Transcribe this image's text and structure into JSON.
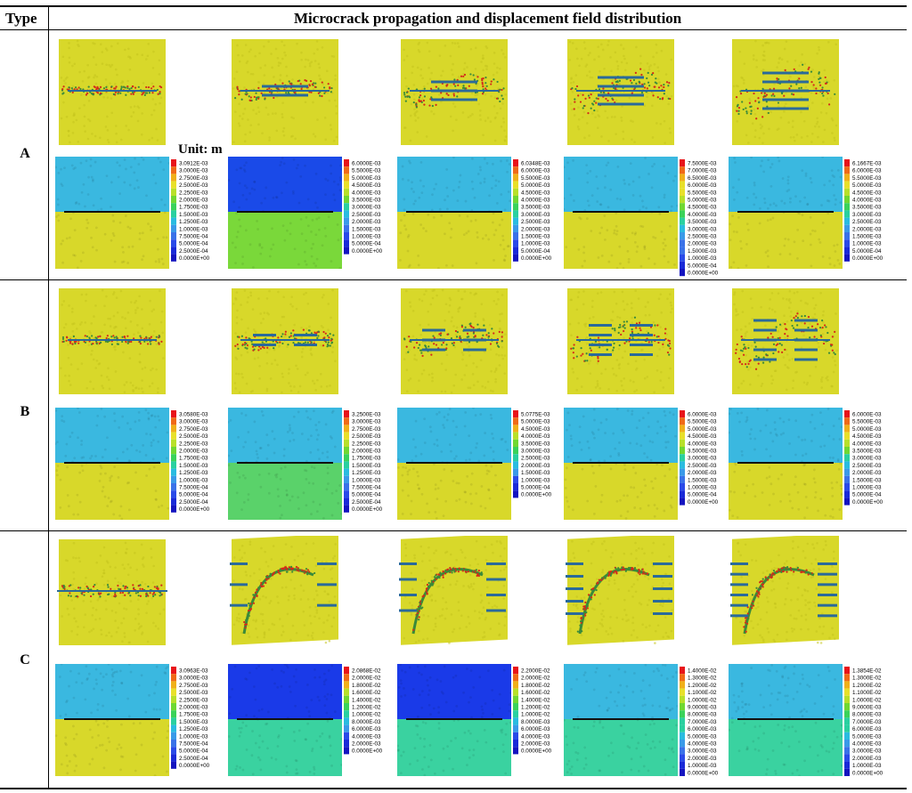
{
  "table": {
    "col_type": "Type",
    "col_main": "Microcrack propagation and displacement field distribution",
    "unit_label": "Unit: m"
  },
  "rows": [
    {
      "label": "A",
      "columns": [
        {
          "legend": [
            "3.0912E-03",
            "3.0000E-03",
            "2.7500E-03",
            "2.5000E-03",
            "2.2500E-03",
            "2.0000E-03",
            "1.7500E-03",
            "1.5000E-03",
            "1.2500E-03",
            "1.0000E-03",
            "7.5000E-04",
            "5.0000E-04",
            "2.5000E-04",
            "0.0000E+00"
          ]
        },
        {
          "legend": [
            "6.0000E-03",
            "5.5000E-03",
            "5.0000E-03",
            "4.5000E-03",
            "4.0000E-03",
            "3.5000E-03",
            "3.0000E-03",
            "2.5000E-03",
            "2.0000E-03",
            "1.5000E-03",
            "1.0000E-03",
            "5.0000E-04",
            "0.0000E+00"
          ]
        },
        {
          "legend": [
            "6.0348E-03",
            "6.0000E-03",
            "5.5000E-03",
            "5.0000E-03",
            "4.5000E-03",
            "4.0000E-03",
            "3.5000E-03",
            "3.0000E-03",
            "2.5000E-03",
            "2.0000E-03",
            "1.5000E-03",
            "1.0000E-03",
            "5.0000E-04",
            "0.0000E+00"
          ]
        },
        {
          "legend": [
            "7.5000E-03",
            "7.0000E-03",
            "6.5000E-03",
            "6.0000E-03",
            "5.5000E-03",
            "5.0000E-03",
            "4.5000E-03",
            "4.0000E-03",
            "3.5000E-03",
            "3.0000E-03",
            "2.5000E-03",
            "2.0000E-03",
            "1.5000E-03",
            "1.0000E-03",
            "5.0000E-04",
            "0.0000E+00"
          ]
        },
        {
          "legend": [
            "6.1667E-03",
            "6.0000E-03",
            "5.5000E-03",
            "5.0000E-03",
            "4.5000E-03",
            "4.0000E-03",
            "3.5000E-03",
            "3.0000E-03",
            "2.5000E-03",
            "2.0000E-03",
            "1.5000E-03",
            "1.0000E-03",
            "5.0000E-04",
            "0.0000E+00"
          ]
        }
      ]
    },
    {
      "label": "B",
      "columns": [
        {
          "legend": [
            "3.0580E-03",
            "3.0000E-03",
            "2.7500E-03",
            "2.5000E-03",
            "2.2500E-03",
            "2.0000E-03",
            "1.7500E-03",
            "1.5000E-03",
            "1.2500E-03",
            "1.0000E-03",
            "7.5000E-04",
            "5.0000E-04",
            "2.5000E-04",
            "0.0000E+00"
          ]
        },
        {
          "legend": [
            "3.2500E-03",
            "3.0000E-03",
            "2.7500E-03",
            "2.5000E-03",
            "2.2500E-03",
            "2.0000E-03",
            "1.7500E-03",
            "1.5000E-03",
            "1.2500E-03",
            "1.0000E-03",
            "7.5000E-04",
            "5.0000E-04",
            "2.5000E-04",
            "0.0000E+00"
          ]
        },
        {
          "legend": [
            "5.0775E-03",
            "5.0000E-03",
            "4.5000E-03",
            "4.0000E-03",
            "3.5000E-03",
            "3.0000E-03",
            "2.5000E-03",
            "2.0000E-03",
            "1.5000E-03",
            "1.0000E-03",
            "5.0000E-04",
            "0.0000E+00"
          ]
        },
        {
          "legend": [
            "6.0000E-03",
            "5.5000E-03",
            "5.0000E-03",
            "4.5000E-03",
            "4.0000E-03",
            "3.5000E-03",
            "3.0000E-03",
            "2.5000E-03",
            "2.0000E-03",
            "1.5000E-03",
            "1.0000E-03",
            "5.0000E-04",
            "0.0000E+00"
          ]
        },
        {
          "legend": [
            "6.0000E-03",
            "5.5000E-03",
            "5.0000E-03",
            "4.5000E-03",
            "4.0000E-03",
            "3.5000E-03",
            "3.0000E-03",
            "2.5000E-03",
            "2.0000E-03",
            "1.5000E-03",
            "1.0000E-03",
            "5.0000E-04",
            "0.0000E+00"
          ]
        }
      ]
    },
    {
      "label": "C",
      "columns": [
        {
          "legend": [
            "3.0963E-03",
            "3.0000E-03",
            "2.7500E-03",
            "2.5000E-03",
            "2.2500E-03",
            "2.0000E-03",
            "1.7500E-03",
            "1.5000E-03",
            "1.2500E-03",
            "1.0000E-03",
            "7.5000E-04",
            "5.0000E-04",
            "2.5000E-04",
            "0.0000E+00"
          ]
        },
        {
          "legend": [
            "2.0868E-02",
            "2.0000E-02",
            "1.8000E-02",
            "1.6000E-02",
            "1.4000E-02",
            "1.2000E-02",
            "1.0000E-02",
            "8.0000E-03",
            "6.0000E-03",
            "4.0000E-03",
            "2.0000E-03",
            "0.0000E+00"
          ]
        },
        {
          "legend": [
            "2.2000E-02",
            "2.0000E-02",
            "1.8000E-02",
            "1.6000E-02",
            "1.4000E-02",
            "1.2000E-02",
            "1.0000E-02",
            "8.0000E-03",
            "6.0000E-03",
            "4.0000E-03",
            "2.0000E-03",
            "0.0000E+00"
          ]
        },
        {
          "legend": [
            "1.4000E-02",
            "1.3000E-02",
            "1.2000E-02",
            "1.1000E-02",
            "1.0000E-02",
            "9.0000E-03",
            "8.0000E-03",
            "7.0000E-03",
            "6.0000E-03",
            "5.0000E-03",
            "4.0000E-03",
            "3.0000E-03",
            "2.0000E-03",
            "1.0000E-03",
            "0.0000E+00"
          ]
        },
        {
          "legend": [
            "1.3854E-02",
            "1.3000E-02",
            "1.2000E-02",
            "1.1000E-02",
            "1.0000E-02",
            "9.0000E-03",
            "8.0000E-03",
            "7.0000E-03",
            "6.0000E-03",
            "5.0000E-03",
            "4.0000E-03",
            "3.0000E-03",
            "2.0000E-03",
            "1.0000E-03",
            "0.0000E+00"
          ]
        }
      ]
    }
  ],
  "colors": {
    "particle_yellow": "#d8d82a",
    "crack_blue": "#2a6a9a",
    "crack_red": "#d42a1a",
    "field_cyan": "#3ab8e0",
    "field_blue": "#1a3ae8"
  }
}
